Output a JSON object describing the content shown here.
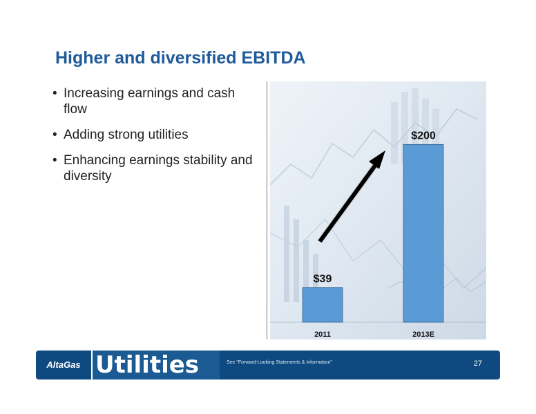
{
  "slide": {
    "title": "Higher and diversified EBITDA",
    "bullets": [
      "Increasing earnings and cash flow",
      "Adding strong utilities",
      "Enhancing earnings stability and diversity"
    ]
  },
  "footer": {
    "logo_text": "AltaGas",
    "division": "Utilities",
    "note": "See \"Forward-Looking Statements & Information\"",
    "page_number": "27"
  },
  "chart_data": {
    "type": "bar",
    "categories": [
      "2011",
      "2013E"
    ],
    "values": [
      39,
      200
    ],
    "data_labels": [
      "$39",
      "$200"
    ],
    "ylim": [
      0,
      215
    ],
    "bar_color": "#5b9bd5",
    "grid": false,
    "annotation": "arrow indicating growth"
  }
}
